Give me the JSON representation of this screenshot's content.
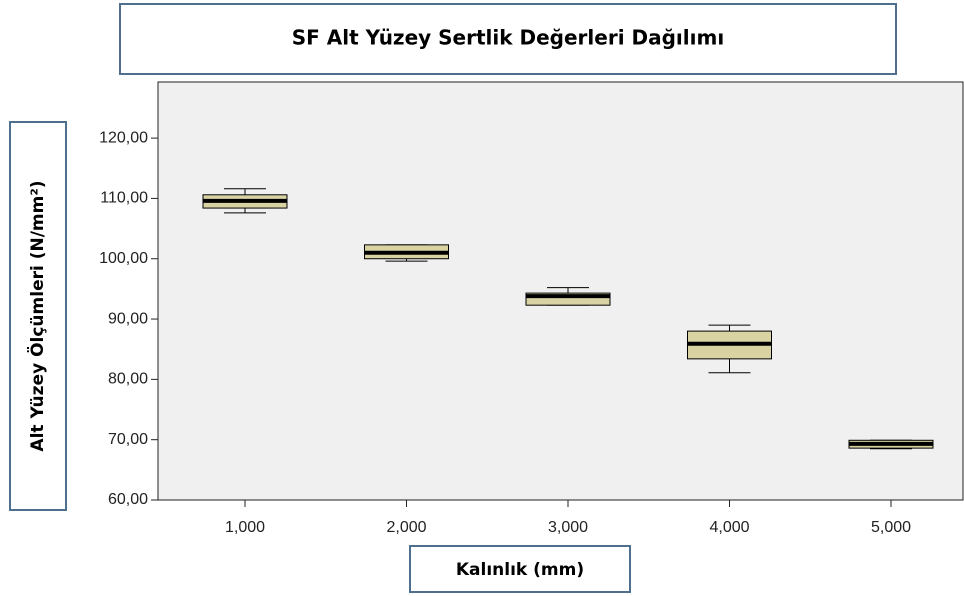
{
  "chart_data": {
    "type": "box",
    "title": "SF Alt Yüzey Sertlik Değerleri Dağılımı",
    "y_label": "Alt Yüzey Ölçümleri    (N/mm²)",
    "x_label": "Kalınlık    (mm)",
    "categories": [
      "1,000",
      "2,000",
      "3,000",
      "4,000",
      "5,000"
    ],
    "boxes": [
      {
        "min": 107.6,
        "q1": 108.4,
        "median": 109.6,
        "q3": 110.6,
        "max": 111.6
      },
      {
        "min": 99.6,
        "q1": 100.0,
        "median": 101.0,
        "q3": 102.3,
        "max": 102.3
      },
      {
        "min": 92.3,
        "q1": 92.3,
        "median": 93.8,
        "q3": 94.3,
        "max": 95.2
      },
      {
        "min": 81.1,
        "q1": 83.4,
        "median": 85.9,
        "q3": 88.0,
        "max": 89.0
      },
      {
        "min": 68.5,
        "q1": 68.6,
        "median": 69.3,
        "q3": 69.9,
        "max": 69.9
      }
    ],
    "color": "#d9d3a3",
    "ylim": [
      60,
      129.3
    ],
    "yticks": [
      {
        "value": 60,
        "label": "60,00"
      },
      {
        "value": 70,
        "label": "70,00"
      },
      {
        "value": 80,
        "label": "80,00"
      },
      {
        "value": 90,
        "label": "90,00"
      },
      {
        "value": 100,
        "label": "100,00"
      },
      {
        "value": 110,
        "label": "110,00"
      },
      {
        "value": 120,
        "label": "120,00"
      }
    ]
  }
}
